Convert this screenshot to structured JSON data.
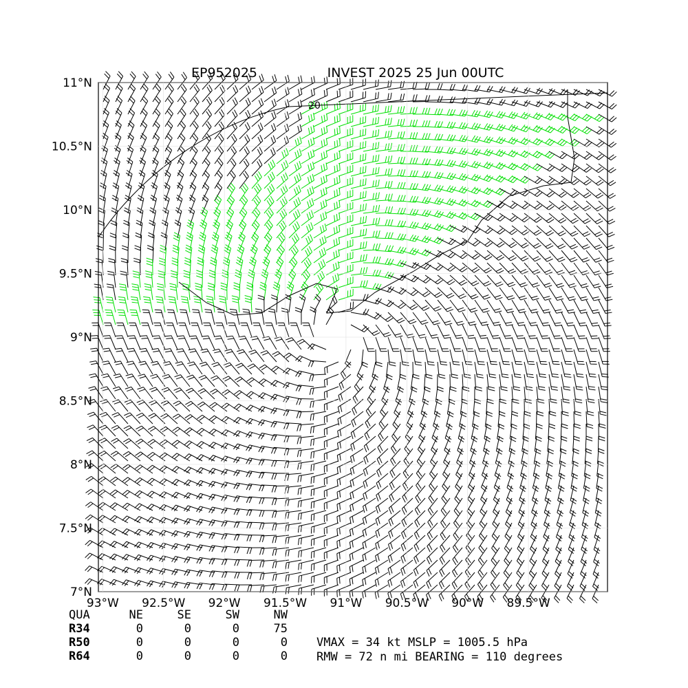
{
  "map": {
    "title_left": "EP952025",
    "title_right": "INVEST 2025 25 Jun 00UTC",
    "contour_label": "20",
    "xlim": [
      -93.036,
      -88.85
    ],
    "ylim": [
      7,
      11
    ],
    "xticks": [
      {
        "value": -93,
        "label": "93°W"
      },
      {
        "value": -92.5,
        "label": "92.5°W"
      },
      {
        "value": -92,
        "label": "92°W"
      },
      {
        "value": -91.5,
        "label": "91.5°W"
      },
      {
        "value": -91,
        "label": "91°W"
      },
      {
        "value": -90.5,
        "label": "90.5°W"
      },
      {
        "value": -90,
        "label": "90°W"
      },
      {
        "value": -89.5,
        "label": "89.5°W"
      }
    ],
    "yticks": [
      {
        "value": 11,
        "label": "11°N"
      },
      {
        "value": 10.5,
        "label": "10.5°N"
      },
      {
        "value": 10,
        "label": "10°N"
      },
      {
        "value": 9.5,
        "label": "9.5°N"
      },
      {
        "value": 9,
        "label": "9°N"
      },
      {
        "value": 8.5,
        "label": "8.5°N"
      },
      {
        "value": 8,
        "label": "8°N"
      },
      {
        "value": 7.5,
        "label": "7.5°N"
      },
      {
        "value": 7,
        "label": "7°N"
      }
    ],
    "table": {
      "header": [
        "QUA",
        "NE",
        "SE",
        "SW",
        "NW"
      ],
      "rows": [
        [
          "R34",
          "0",
          "0",
          "0",
          "75"
        ],
        [
          "R50",
          "0",
          "0",
          "0",
          "0"
        ],
        [
          "R64",
          "0",
          "0",
          "0",
          "0"
        ]
      ]
    },
    "info": [
      "VMAX =  34 kt MSLP = 1005.5 hPa",
      "RMW =  72 n mi BEARING = 110 degrees"
    ]
  }
}
